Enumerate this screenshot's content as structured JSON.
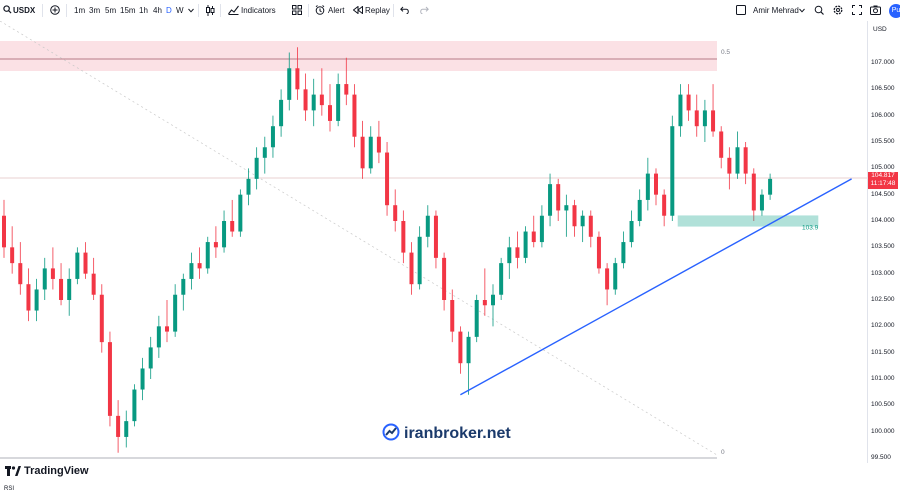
{
  "toolbar": {
    "symbol": "USDX",
    "intervals": [
      "1m",
      "3m",
      "5m",
      "15m",
      "1h",
      "4h",
      "D",
      "W"
    ],
    "active_interval": "D",
    "indicators_label": "Indicators",
    "alert_label": "Alert",
    "replay_label": "Replay",
    "user_name": "Amir Mehrad",
    "avatar_text": "Pu",
    "icons": [
      "search-icon",
      "add-symbol-icon",
      "chevron-down-icon",
      "candles-icon",
      "indicators-icon",
      "templates-icon",
      "alert-icon",
      "replay-icon",
      "undo-icon",
      "redo-icon",
      "checkbox-icon",
      "quick-search-icon",
      "settings-icon",
      "snapshot-icon"
    ]
  },
  "scale": {
    "currency": "USD",
    "labels": [
      "107.000",
      "106.500",
      "106.000",
      "105.500",
      "105.000",
      "104.500",
      "104.000",
      "103.500",
      "103.000",
      "102.500",
      "102.000",
      "101.500",
      "101.000",
      "100.500",
      "100.000",
      "99.500"
    ]
  },
  "current_price": {
    "value": "104.817",
    "countdown": "11:17:48"
  },
  "annotations": {
    "fib_top_label": "0.5",
    "fib_bottom_label": "0",
    "zone_label": "103.9"
  },
  "watermark": "iranbroker.net",
  "footer": {
    "brand": "TradingView",
    "pane": "RSI"
  },
  "colors": {
    "up": "#089981",
    "down": "#f23645",
    "trendline": "#2962ff",
    "zone": "#22ab94",
    "resistance": "#f7c9d0"
  },
  "chart_data": {
    "type": "candlestick",
    "symbol": "USDX",
    "ylim": [
      99.5,
      107.3
    ],
    "candles": [
      [
        104.1,
        104.4,
        103.3,
        103.5
      ],
      [
        103.5,
        103.9,
        103.0,
        103.2
      ],
      [
        103.2,
        103.6,
        102.6,
        102.8
      ],
      [
        102.8,
        103.1,
        102.1,
        102.3
      ],
      [
        102.3,
        102.9,
        102.1,
        102.7
      ],
      [
        102.7,
        103.3,
        102.5,
        103.1
      ],
      [
        103.1,
        103.5,
        102.7,
        102.9
      ],
      [
        102.9,
        103.2,
        102.4,
        102.5
      ],
      [
        102.5,
        103.1,
        102.2,
        102.9
      ],
      [
        102.9,
        103.5,
        102.8,
        103.4
      ],
      [
        103.4,
        103.6,
        102.9,
        103.0
      ],
      [
        103.0,
        103.3,
        102.5,
        102.6
      ],
      [
        102.6,
        102.8,
        101.5,
        101.7
      ],
      [
        101.7,
        101.9,
        100.1,
        100.3
      ],
      [
        100.3,
        100.6,
        99.6,
        99.9
      ],
      [
        99.9,
        100.4,
        99.7,
        100.2
      ],
      [
        100.2,
        100.9,
        100.1,
        100.8
      ],
      [
        100.8,
        101.4,
        100.6,
        101.2
      ],
      [
        101.2,
        101.8,
        101.0,
        101.6
      ],
      [
        101.6,
        102.2,
        101.4,
        102.0
      ],
      [
        102.0,
        102.5,
        101.7,
        101.9
      ],
      [
        101.9,
        102.8,
        101.8,
        102.6
      ],
      [
        102.6,
        103.0,
        102.3,
        102.9
      ],
      [
        102.9,
        103.4,
        102.7,
        103.2
      ],
      [
        103.2,
        103.5,
        102.9,
        103.1
      ],
      [
        103.1,
        103.7,
        103.0,
        103.6
      ],
      [
        103.6,
        103.9,
        103.3,
        103.5
      ],
      [
        103.5,
        104.2,
        103.4,
        104.0
      ],
      [
        104.0,
        104.4,
        103.7,
        103.8
      ],
      [
        103.8,
        104.6,
        103.7,
        104.5
      ],
      [
        104.5,
        105.0,
        104.3,
        104.8
      ],
      [
        104.8,
        105.4,
        104.6,
        105.2
      ],
      [
        105.2,
        105.6,
        104.9,
        105.4
      ],
      [
        105.4,
        106.0,
        105.2,
        105.8
      ],
      [
        105.8,
        106.5,
        105.6,
        106.3
      ],
      [
        106.3,
        107.2,
        106.1,
        106.9
      ],
      [
        106.9,
        107.3,
        106.3,
        106.5
      ],
      [
        106.5,
        106.8,
        105.9,
        106.1
      ],
      [
        106.1,
        106.7,
        105.8,
        106.4
      ],
      [
        106.4,
        106.9,
        106.0,
        106.2
      ],
      [
        106.2,
        106.6,
        105.7,
        105.9
      ],
      [
        105.9,
        106.8,
        105.8,
        106.6
      ],
      [
        106.6,
        107.1,
        106.2,
        106.4
      ],
      [
        106.4,
        106.6,
        105.4,
        105.6
      ],
      [
        105.6,
        105.9,
        104.8,
        105.0
      ],
      [
        105.0,
        105.8,
        104.9,
        105.6
      ],
      [
        105.6,
        105.9,
        105.1,
        105.3
      ],
      [
        105.3,
        105.5,
        104.1,
        104.3
      ],
      [
        104.3,
        104.6,
        103.8,
        104.0
      ],
      [
        104.0,
        104.2,
        103.2,
        103.4
      ],
      [
        103.4,
        103.6,
        102.6,
        102.8
      ],
      [
        102.8,
        103.9,
        102.7,
        103.7
      ],
      [
        103.7,
        104.3,
        103.5,
        104.1
      ],
      [
        104.1,
        104.2,
        103.1,
        103.3
      ],
      [
        103.3,
        103.4,
        102.3,
        102.5
      ],
      [
        102.5,
        102.7,
        101.7,
        101.9
      ],
      [
        101.9,
        102.0,
        101.1,
        101.3
      ],
      [
        101.3,
        101.9,
        100.7,
        101.8
      ],
      [
        101.8,
        102.6,
        101.7,
        102.5
      ],
      [
        102.5,
        103.1,
        102.2,
        102.4
      ],
      [
        102.4,
        102.8,
        102.0,
        102.6
      ],
      [
        102.6,
        103.3,
        102.5,
        103.2
      ],
      [
        103.2,
        103.7,
        102.9,
        103.5
      ],
      [
        103.5,
        103.8,
        103.1,
        103.3
      ],
      [
        103.3,
        103.9,
        103.2,
        103.8
      ],
      [
        103.8,
        104.1,
        103.5,
        103.6
      ],
      [
        103.6,
        104.3,
        103.5,
        104.1
      ],
      [
        104.1,
        104.9,
        103.9,
        104.7
      ],
      [
        104.7,
        104.8,
        104.0,
        104.2
      ],
      [
        104.2,
        104.5,
        103.7,
        104.3
      ],
      [
        104.3,
        104.4,
        103.7,
        103.9
      ],
      [
        103.9,
        104.2,
        103.6,
        104.1
      ],
      [
        104.1,
        104.2,
        103.5,
        103.7
      ],
      [
        103.7,
        103.8,
        103.0,
        103.1
      ],
      [
        103.1,
        103.2,
        102.4,
        102.7
      ],
      [
        102.7,
        103.3,
        102.6,
        103.2
      ],
      [
        103.2,
        103.8,
        103.1,
        103.6
      ],
      [
        103.6,
        104.2,
        103.5,
        104.0
      ],
      [
        104.0,
        104.6,
        103.9,
        104.4
      ],
      [
        104.4,
        105.2,
        104.2,
        104.9
      ],
      [
        104.9,
        105.0,
        104.3,
        104.5
      ],
      [
        104.5,
        104.6,
        103.9,
        104.1
      ],
      [
        104.1,
        106.0,
        104.0,
        105.8
      ],
      [
        105.8,
        106.6,
        105.6,
        106.4
      ],
      [
        106.4,
        106.6,
        105.9,
        106.1
      ],
      [
        106.1,
        106.4,
        105.6,
        105.8
      ],
      [
        105.8,
        106.3,
        105.5,
        106.1
      ],
      [
        106.1,
        106.6,
        105.6,
        105.7
      ],
      [
        105.7,
        105.8,
        105.0,
        105.2
      ],
      [
        105.2,
        105.4,
        104.6,
        104.9
      ],
      [
        104.9,
        105.7,
        104.8,
        105.4
      ],
      [
        105.4,
        105.5,
        104.7,
        104.9
      ],
      [
        104.9,
        105.0,
        104.0,
        104.2
      ],
      [
        104.2,
        104.6,
        104.1,
        104.5
      ],
      [
        104.5,
        104.9,
        104.4,
        104.8
      ]
    ],
    "trendline": {
      "from": [
        56,
        100.7
      ],
      "to": [
        104,
        104.8
      ]
    },
    "zone": {
      "low": 103.9,
      "high": 104.1
    },
    "resistance_zone": {
      "low": 106.8,
      "high": 107.3
    }
  }
}
